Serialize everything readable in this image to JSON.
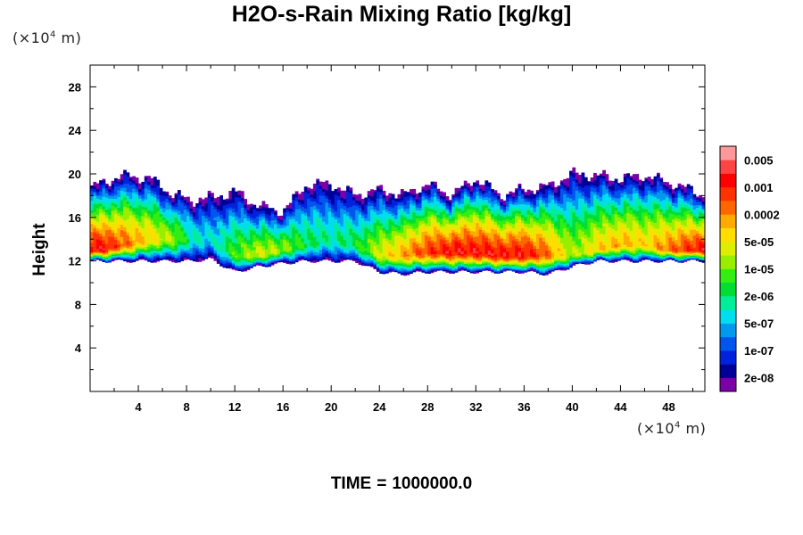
{
  "chart_data": {
    "type": "heatmap",
    "title": "H2O-s-Rain Mixing Ratio [kg/kg]",
    "ylabel": "Height",
    "xlabel": "",
    "x_unit_prefix": "(×10",
    "x_unit_exp": "4",
    "x_unit_suffix": " m)",
    "y_unit_prefix": "(×10",
    "y_unit_exp": "4",
    "y_unit_suffix": " m)",
    "xlim": [
      0,
      51
    ],
    "ylim": [
      0,
      30
    ],
    "x_ticks": [
      4,
      8,
      12,
      16,
      20,
      24,
      28,
      32,
      36,
      40,
      44,
      48
    ],
    "y_ticks": [
      4,
      8,
      12,
      16,
      20,
      24,
      28
    ],
    "colorbar": {
      "colors": [
        "#7a00a8",
        "#000099",
        "#0022dd",
        "#0055ee",
        "#0099ee",
        "#00ddee",
        "#00ee99",
        "#00dd33",
        "#33ee11",
        "#99ee00",
        "#ddee00",
        "#ffdd00",
        "#ffaa00",
        "#ff6600",
        "#ff3300",
        "#ff0000",
        "#ff4444",
        "#ff9999"
      ],
      "labels": [
        "2e-08",
        "1e-07",
        "5e-07",
        "2e-06",
        "1e-05",
        "5e-05",
        "0.0002",
        "0.001",
        "0.005"
      ]
    },
    "field": {
      "description": "cloud band between ~11 and ~20 (×10^4 m), peak in core near 12.5",
      "profile": [
        {
          "x": 0.0,
          "bottom": 12.0,
          "top": 18.5,
          "core": 13.0,
          "peak": 15
        },
        {
          "x": 1.0,
          "bottom": 12.0,
          "top": 19.2,
          "core": 13.0,
          "peak": 15
        },
        {
          "x": 3.0,
          "bottom": 12.0,
          "top": 19.8,
          "core": 13.5,
          "peak": 13
        },
        {
          "x": 5.0,
          "bottom": 12.0,
          "top": 19.5,
          "core": 14.0,
          "peak": 11
        },
        {
          "x": 7.0,
          "bottom": 12.0,
          "top": 18.0,
          "core": 14.0,
          "peak": 9
        },
        {
          "x": 8.5,
          "bottom": 12.0,
          "top": 17.5,
          "core": 14.0,
          "peak": 6
        },
        {
          "x": 10.0,
          "bottom": 12.2,
          "top": 17.8,
          "core": 14.0,
          "peak": 5
        },
        {
          "x": 12.0,
          "bottom": 11.0,
          "top": 18.3,
          "core": 12.5,
          "peak": 8
        },
        {
          "x": 14.0,
          "bottom": 11.5,
          "top": 17.0,
          "core": 12.5,
          "peak": 10
        },
        {
          "x": 16.0,
          "bottom": 11.8,
          "top": 16.5,
          "core": 13.0,
          "peak": 9
        },
        {
          "x": 18.0,
          "bottom": 12.0,
          "top": 19.0,
          "core": 13.5,
          "peak": 7
        },
        {
          "x": 20.0,
          "bottom": 12.0,
          "top": 19.0,
          "core": 14.0,
          "peak": 6
        },
        {
          "x": 22.0,
          "bottom": 12.0,
          "top": 18.0,
          "core": 13.5,
          "peak": 7
        },
        {
          "x": 24.0,
          "bottom": 11.0,
          "top": 18.5,
          "core": 12.5,
          "peak": 10
        },
        {
          "x": 26.0,
          "bottom": 10.8,
          "top": 18.0,
          "core": 12.5,
          "peak": 12
        },
        {
          "x": 28.0,
          "bottom": 11.0,
          "top": 19.0,
          "core": 12.8,
          "peak": 14
        },
        {
          "x": 30.0,
          "bottom": 11.0,
          "top": 18.0,
          "core": 12.8,
          "peak": 15
        },
        {
          "x": 32.0,
          "bottom": 11.0,
          "top": 19.5,
          "core": 12.8,
          "peak": 15
        },
        {
          "x": 34.0,
          "bottom": 11.0,
          "top": 18.0,
          "core": 12.5,
          "peak": 15
        },
        {
          "x": 36.0,
          "bottom": 11.0,
          "top": 18.5,
          "core": 12.5,
          "peak": 15
        },
        {
          "x": 38.0,
          "bottom": 10.8,
          "top": 18.8,
          "core": 12.5,
          "peak": 13
        },
        {
          "x": 40.0,
          "bottom": 11.5,
          "top": 20.0,
          "core": 12.5,
          "peak": 9
        },
        {
          "x": 42.0,
          "bottom": 12.0,
          "top": 19.8,
          "core": 13.0,
          "peak": 11
        },
        {
          "x": 44.0,
          "bottom": 12.0,
          "top": 19.5,
          "core": 13.5,
          "peak": 12
        },
        {
          "x": 46.0,
          "bottom": 12.0,
          "top": 19.8,
          "core": 13.5,
          "peak": 11
        },
        {
          "x": 48.0,
          "bottom": 12.0,
          "top": 19.2,
          "core": 13.0,
          "peak": 13
        },
        {
          "x": 51.0,
          "bottom": 12.0,
          "top": 18.0,
          "core": 13.0,
          "peak": 15
        }
      ]
    }
  },
  "footer": {
    "label": "TIME",
    "separator": "=",
    "value": "1000000.0"
  }
}
